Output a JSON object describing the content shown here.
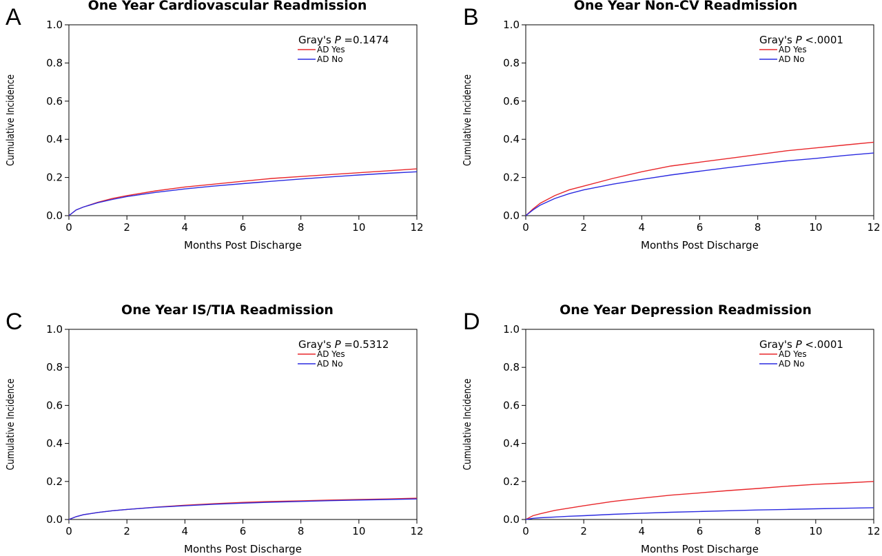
{
  "chart_data": [
    {
      "type": "line",
      "panel_letter": "A",
      "title": "One Year Cardiovascular Readmission",
      "xlabel": "Months Post Discharge",
      "ylabel": "Cumulative Incidence",
      "xlim": [
        0,
        12
      ],
      "ylim": [
        0,
        1.0
      ],
      "xticks": [
        "0",
        "2",
        "4",
        "6",
        "8",
        "10",
        "12"
      ],
      "yticks": [
        "0.0",
        "0.2",
        "0.4",
        "0.6",
        "0.8",
        "1.0"
      ],
      "annotation": {
        "prefix": "Gray's ",
        "italic": "P",
        "suffix": " =0.1474"
      },
      "legend_position": "top-right",
      "series": [
        {
          "name": "AD Yes",
          "color": "#e8262a",
          "x": [
            0,
            0.25,
            0.5,
            1,
            1.5,
            2,
            3,
            4,
            5,
            6,
            7,
            8,
            9,
            10,
            11,
            12
          ],
          "y": [
            0,
            0.03,
            0.045,
            0.07,
            0.09,
            0.105,
            0.13,
            0.15,
            0.165,
            0.18,
            0.195,
            0.205,
            0.215,
            0.225,
            0.235,
            0.245
          ]
        },
        {
          "name": "AD No",
          "color": "#2a2ae0",
          "x": [
            0,
            0.25,
            0.5,
            1,
            1.5,
            2,
            3,
            4,
            5,
            6,
            7,
            8,
            9,
            10,
            11,
            12
          ],
          "y": [
            0,
            0.03,
            0.045,
            0.068,
            0.085,
            0.1,
            0.122,
            0.14,
            0.155,
            0.168,
            0.18,
            0.192,
            0.203,
            0.213,
            0.222,
            0.23
          ]
        }
      ]
    },
    {
      "type": "line",
      "panel_letter": "B",
      "title": "One Year Non-CV Readmission",
      "xlabel": "Months Post Discharge",
      "ylabel": "Cumulative Incidence",
      "xlim": [
        0,
        12
      ],
      "ylim": [
        0,
        1.0
      ],
      "xticks": [
        "0",
        "2",
        "4",
        "6",
        "8",
        "10",
        "12"
      ],
      "yticks": [
        "0.0",
        "0.2",
        "0.4",
        "0.6",
        "0.8",
        "1.0"
      ],
      "annotation": {
        "prefix": "Gray's ",
        "italic": "P",
        "suffix": "  <.0001"
      },
      "legend_position": "top-right",
      "series": [
        {
          "name": "AD Yes",
          "color": "#e8262a",
          "x": [
            0,
            0.25,
            0.5,
            1,
            1.5,
            2,
            3,
            4,
            5,
            6,
            7,
            8,
            9,
            10,
            11,
            12
          ],
          "y": [
            0,
            0.035,
            0.065,
            0.105,
            0.135,
            0.155,
            0.195,
            0.23,
            0.26,
            0.28,
            0.3,
            0.32,
            0.34,
            0.355,
            0.37,
            0.385
          ]
        },
        {
          "name": "AD No",
          "color": "#2a2ae0",
          "x": [
            0,
            0.25,
            0.5,
            1,
            1.5,
            2,
            3,
            4,
            5,
            6,
            7,
            8,
            9,
            10,
            11,
            12
          ],
          "y": [
            0,
            0.03,
            0.055,
            0.09,
            0.115,
            0.135,
            0.165,
            0.19,
            0.213,
            0.233,
            0.252,
            0.27,
            0.287,
            0.3,
            0.315,
            0.328
          ]
        }
      ]
    },
    {
      "type": "line",
      "panel_letter": "C",
      "title": "One Year IS/TIA Readmission",
      "xlabel": "Months Post Discharge",
      "ylabel": "Cumulative Incidence",
      "xlim": [
        0,
        12
      ],
      "ylim": [
        0,
        1.0
      ],
      "xticks": [
        "0",
        "2",
        "4",
        "6",
        "8",
        "10",
        "12"
      ],
      "yticks": [
        "0.0",
        "0.2",
        "0.4",
        "0.6",
        "0.8",
        "1.0"
      ],
      "annotation": {
        "prefix": "Gray's ",
        "italic": "P",
        "suffix": " =0.5312"
      },
      "legend_position": "top-right",
      "series": [
        {
          "name": "AD Yes",
          "color": "#e8262a",
          "x": [
            0,
            0.25,
            0.5,
            1,
            1.5,
            2,
            3,
            4,
            5,
            6,
            7,
            8,
            9,
            10,
            11,
            12
          ],
          "y": [
            0,
            0.015,
            0.025,
            0.037,
            0.046,
            0.053,
            0.065,
            0.075,
            0.083,
            0.09,
            0.095,
            0.098,
            0.102,
            0.105,
            0.108,
            0.112
          ]
        },
        {
          "name": "AD No",
          "color": "#2a2ae0",
          "x": [
            0,
            0.25,
            0.5,
            1,
            1.5,
            2,
            3,
            4,
            5,
            6,
            7,
            8,
            9,
            10,
            11,
            12
          ],
          "y": [
            0,
            0.015,
            0.025,
            0.037,
            0.046,
            0.053,
            0.064,
            0.072,
            0.08,
            0.086,
            0.091,
            0.095,
            0.099,
            0.102,
            0.105,
            0.108
          ]
        }
      ]
    },
    {
      "type": "line",
      "panel_letter": "D",
      "title": "One Year Depression Readmission",
      "xlabel": "Months Post Discharge",
      "ylabel": "Cumulative Incidence",
      "xlim": [
        0,
        12
      ],
      "ylim": [
        0,
        1.0
      ],
      "xticks": [
        "0",
        "2",
        "4",
        "6",
        "8",
        "10",
        "12"
      ],
      "yticks": [
        "0.0",
        "0.2",
        "0.4",
        "0.6",
        "0.8",
        "1.0"
      ],
      "annotation": {
        "prefix": "Gray's ",
        "italic": "P",
        "suffix": "  <.0001"
      },
      "legend_position": "top-right",
      "series": [
        {
          "name": "AD Yes",
          "color": "#e8262a",
          "x": [
            0,
            0.25,
            0.5,
            1,
            1.5,
            2,
            3,
            4,
            5,
            6,
            7,
            8,
            9,
            10,
            11,
            12
          ],
          "y": [
            0,
            0.02,
            0.03,
            0.048,
            0.06,
            0.072,
            0.095,
            0.112,
            0.128,
            0.14,
            0.152,
            0.163,
            0.175,
            0.185,
            0.192,
            0.2
          ]
        },
        {
          "name": "AD No",
          "color": "#2a2ae0",
          "x": [
            0,
            0.25,
            0.5,
            1,
            1.5,
            2,
            3,
            4,
            5,
            6,
            7,
            8,
            9,
            10,
            11,
            12
          ],
          "y": [
            0,
            0.006,
            0.009,
            0.013,
            0.017,
            0.02,
            0.027,
            0.033,
            0.038,
            0.042,
            0.046,
            0.05,
            0.053,
            0.056,
            0.059,
            0.062
          ]
        }
      ]
    }
  ]
}
